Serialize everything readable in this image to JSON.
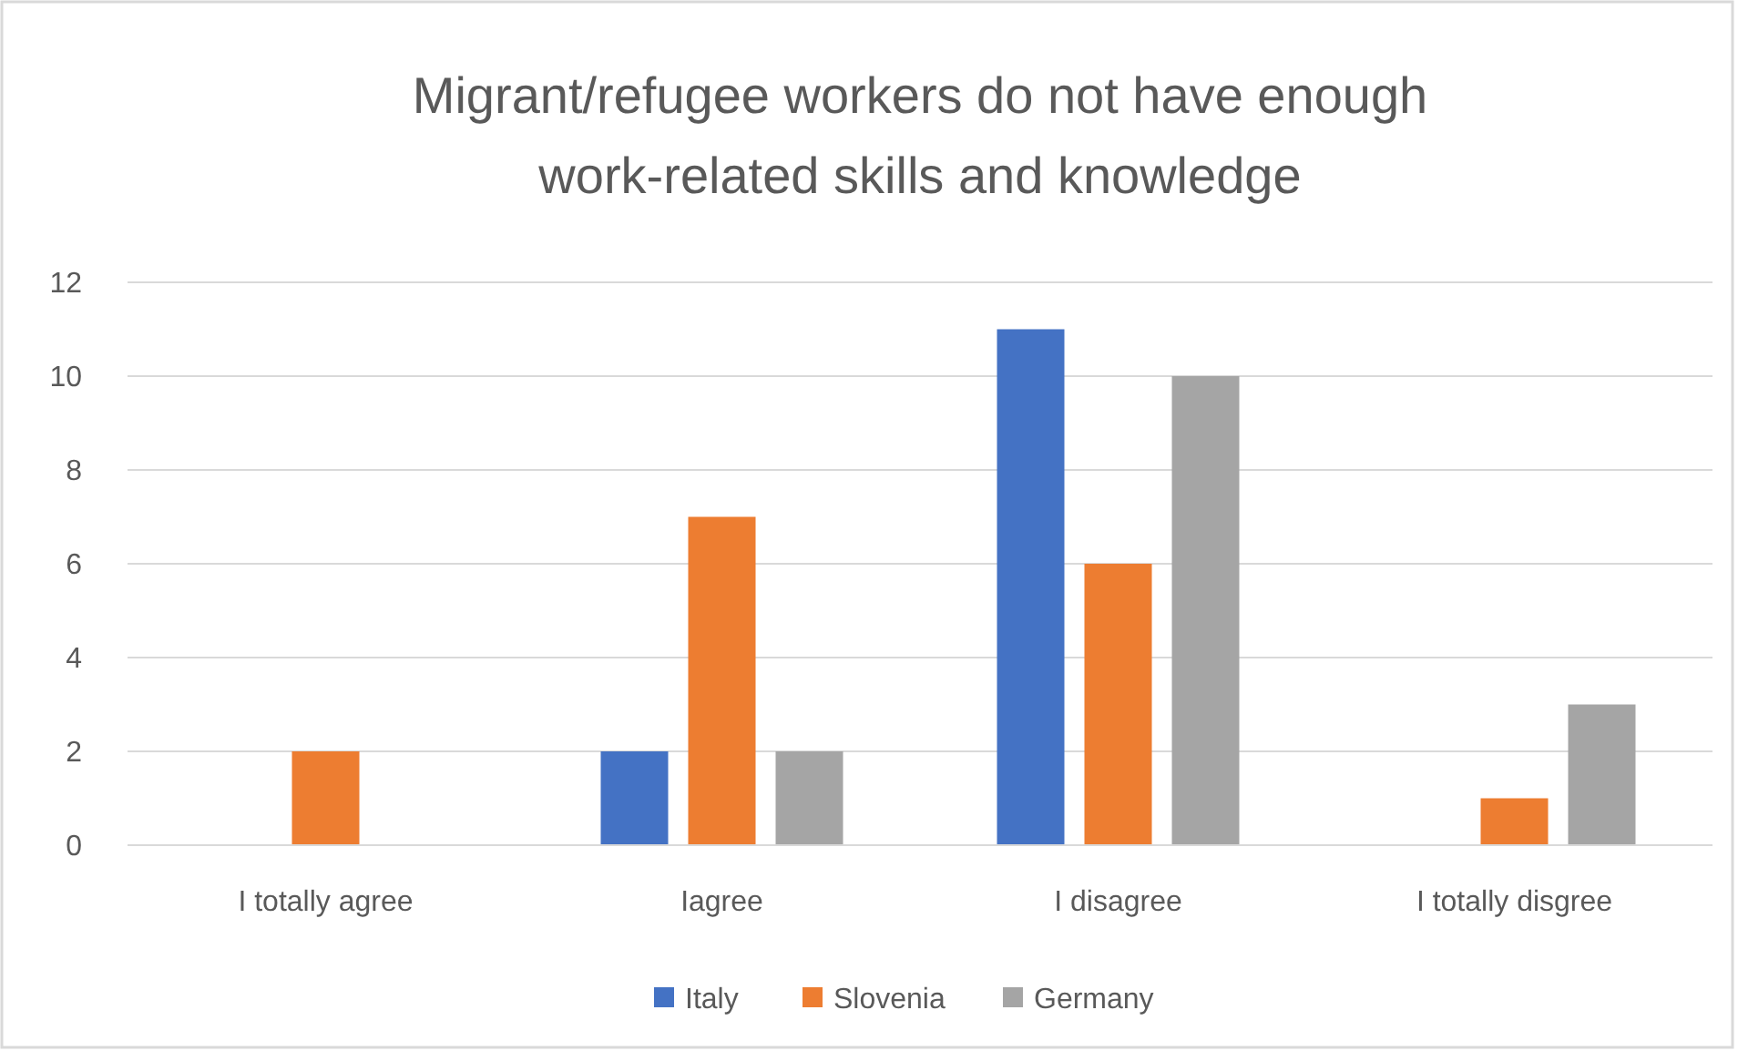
{
  "chart_data": {
    "type": "bar",
    "title": "Migrant/refugee workers do not have enough work-related skills and knowledge",
    "categories": [
      "I totally agree",
      "Iagree",
      "I disagree",
      "I totally disgree"
    ],
    "series": [
      {
        "name": "Italy",
        "color": "#4472c4",
        "values": [
          0,
          2,
          11,
          0
        ]
      },
      {
        "name": "Slovenia",
        "color": "#ed7d31",
        "values": [
          2,
          7,
          6,
          1
        ]
      },
      {
        "name": "Germany",
        "color": "#a5a5a5",
        "values": [
          0,
          2,
          10,
          3
        ]
      }
    ],
    "ylim": [
      0,
      12
    ],
    "yticks": [
      0,
      2,
      4,
      6,
      8,
      10,
      12
    ],
    "grid": "y",
    "legend": "bottom"
  }
}
